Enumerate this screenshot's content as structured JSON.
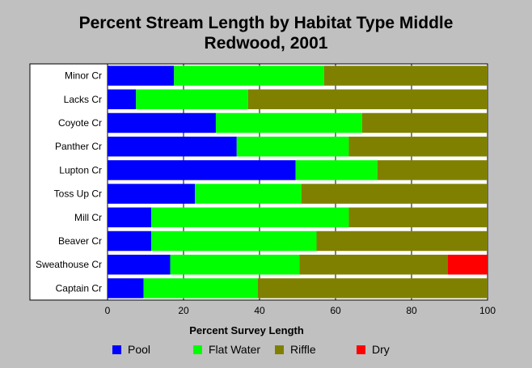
{
  "chart_data": {
    "type": "bar",
    "orientation": "horizontal",
    "stacked": true,
    "title_line1": "Percent Stream Length by Habitat Type Middle",
    "title_line2": "Redwood, 2001",
    "xlabel": "Percent Survey Length",
    "xlim": [
      0,
      100
    ],
    "xticks": [
      "0",
      "20",
      "40",
      "60",
      "80",
      "100"
    ],
    "grid": true,
    "legend_position": "bottom",
    "categories": [
      "Minor Cr",
      "Lacks Cr",
      "Coyote Cr",
      "Panther Cr",
      "Lupton Cr",
      "Toss Up Cr",
      "Mill Cr",
      "Beaver Cr",
      "Sweathouse Cr",
      "Captain Cr"
    ],
    "series": [
      {
        "name": "Pool",
        "color": "#0000ff",
        "values": [
          17.5,
          7.5,
          28.5,
          34,
          49.5,
          23,
          11.5,
          11.5,
          16.5,
          9.5
        ]
      },
      {
        "name": "Flat Water",
        "color": "#00ff00",
        "values": [
          39.5,
          29.5,
          38.5,
          29.5,
          21.5,
          28,
          52,
          43.5,
          34,
          30
        ]
      },
      {
        "name": "Riffle",
        "color": "#808000",
        "values": [
          43,
          63,
          33,
          36.5,
          29,
          49,
          36.5,
          45,
          39,
          60.5
        ]
      },
      {
        "name": "Dry",
        "color": "#ff0000",
        "values": [
          0,
          0,
          0,
          0,
          0,
          0,
          0,
          0,
          10.5,
          0
        ]
      }
    ]
  }
}
